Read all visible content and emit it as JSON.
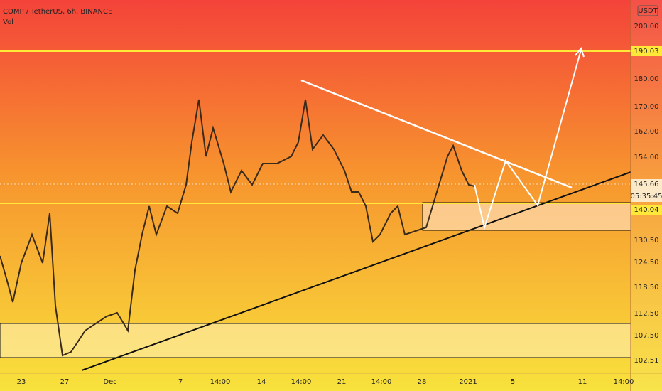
{
  "header": {
    "symbol": "COMP / TetherUS, 6h, BINANCE",
    "indicator": "Vol"
  },
  "currency": "USDT",
  "price_axis": {
    "labels": [
      "200.00",
      "180.00",
      "170.00",
      "162.00",
      "154.00",
      "130.50",
      "124.50",
      "118.50",
      "112.50",
      "107.50",
      "102.51"
    ],
    "level_labels": [
      "190.03",
      "140.04"
    ],
    "current_price": "145.66",
    "countdown": "05:35:45"
  },
  "time_axis": {
    "labels": [
      "23",
      "27",
      "Dec",
      "7",
      "14:00",
      "14",
      "14:00",
      "21",
      "14:00",
      "28",
      "2021",
      "5",
      "11",
      "14:00"
    ]
  }
}
